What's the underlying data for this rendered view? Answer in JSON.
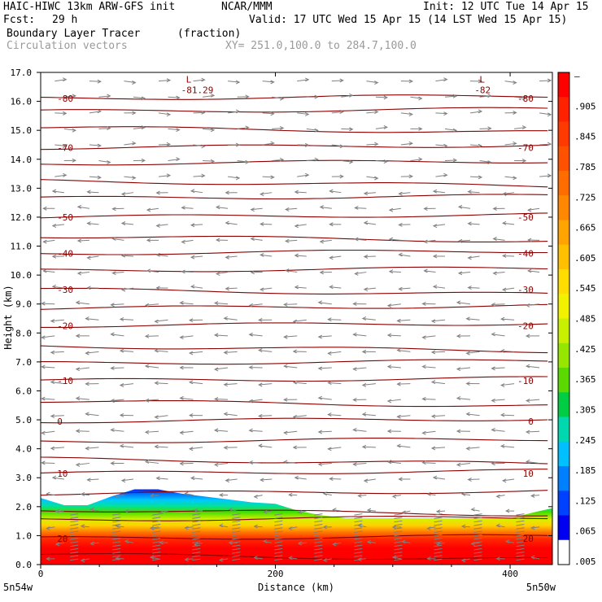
{
  "header": {
    "model": "HAIC-HIWC 13km ARW-GFS init",
    "org": "NCAR/MMM",
    "init": "Init: 12 UTC Tue 14 Apr 15",
    "fcst_label": "Fcst:",
    "fcst_value": "29 h",
    "valid": "Valid: 17 UTC Wed 15 Apr 15 (14 LST Wed 15 Apr 15)",
    "field": "Boundary Layer Tracer",
    "field_units": "(fraction)",
    "overlay": "Circulation vectors",
    "xy": "XY= 251.0,100.0 to 284.7,100.0"
  },
  "chart_data": {
    "type": "heatmap",
    "xlabel": "Distance (km)",
    "ylabel": "Height (km)",
    "xlim": [
      0,
      436
    ],
    "ylim": [
      0,
      17
    ],
    "x_ticks": [
      0,
      200,
      400
    ],
    "y_ticks": [
      "0.0",
      "1.0",
      "2.0",
      "3.0",
      "4.0",
      "5.0",
      "6.0",
      "7.0",
      "8.0",
      "9.0",
      "10.0",
      "11.0",
      "12.0",
      "13.0",
      "14.0",
      "15.0",
      "16.0",
      "17.0"
    ],
    "x_endpoints": {
      "left": "5n54w",
      "right": "5n50w"
    },
    "colorbar_labels": [
      "–",
      ".905",
      ".845",
      ".785",
      ".725",
      ".665",
      ".605",
      ".545",
      ".485",
      ".425",
      ".365",
      ".305",
      ".245",
      ".185",
      ".125",
      ".065",
      ".005"
    ],
    "colorbar_colors": [
      "#ff0000",
      "#ff2200",
      "#ff3a00",
      "#ff5200",
      "#ff6c00",
      "#ff8800",
      "#ffa400",
      "#ffc000",
      "#ffdd00",
      "#f2f200",
      "#c8f000",
      "#96e600",
      "#5ad800",
      "#00cc44",
      "#00d8b0",
      "#00c0ff",
      "#0080ff",
      "#0040ff",
      "#0000f0",
      "#ffffff"
    ],
    "boundary_layer_top_km": {
      "x": [
        0,
        20,
        40,
        60,
        80,
        100,
        120,
        140,
        160,
        180,
        200,
        220,
        240,
        260,
        280,
        300,
        320,
        340,
        360,
        380,
        400,
        420,
        436
      ],
      "y": [
        2.3,
        2.05,
        2.05,
        2.35,
        2.6,
        2.6,
        2.45,
        2.35,
        2.25,
        2.15,
        2.1,
        1.85,
        1.7,
        1.6,
        1.6,
        1.6,
        1.6,
        1.6,
        1.6,
        1.6,
        1.6,
        1.8,
        1.95
      ]
    },
    "temperature_isotherms": [
      {
        "label": "-80",
        "height_km": 16.1
      },
      {
        "label": "-70",
        "height_km": 14.4
      },
      {
        "label": "-50",
        "height_km": 12.0
      },
      {
        "label": "-40",
        "height_km": 10.75
      },
      {
        "label": "-30",
        "height_km": 9.5
      },
      {
        "label": "-20",
        "height_km": 8.25
      },
      {
        "label": "-10",
        "height_km": 6.35
      },
      {
        "label": "0",
        "height_km": 4.95
      },
      {
        "label": "10",
        "height_km": 3.15
      },
      {
        "label": "20",
        "height_km": 0.9
      }
    ],
    "isotherm_levels_km": [
      0.35,
      0.9,
      1.55,
      1.9,
      2.45,
      3.15,
      3.65,
      4.25,
      4.95,
      5.65,
      6.35,
      6.95,
      7.55,
      8.25,
      8.85,
      9.5,
      10.15,
      10.75,
      11.35,
      12.0,
      12.65,
      13.25,
      13.85,
      14.4,
      15.1,
      15.65,
      16.1
    ],
    "lows": [
      {
        "label": "L",
        "value": "-81.29",
        "x_km": 128,
        "height_km": 16.65
      },
      {
        "label": "L",
        "value": "-82",
        "x_km": 378,
        "height_km": 16.65
      }
    ]
  }
}
